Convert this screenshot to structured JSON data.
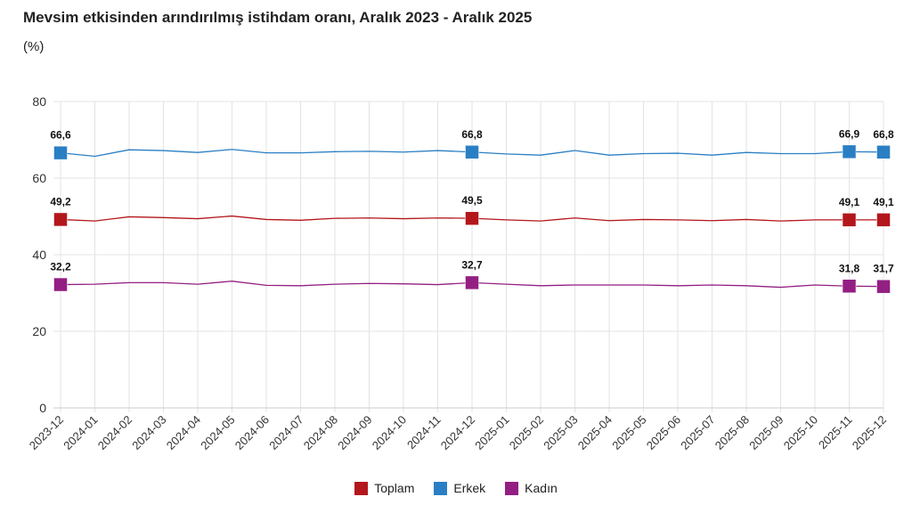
{
  "chart_data": {
    "type": "line",
    "title": "Mevsim etkisinden arındırılmış istihdam oranı, Aralık 2023 - Aralık 2025",
    "subtitle": "(%)",
    "ylim": [
      0,
      80
    ],
    "yticks": [
      0,
      20,
      40,
      60,
      80
    ],
    "grid": true,
    "legend": "bottom",
    "categories": [
      "2023-12",
      "2024-01",
      "2024-02",
      "2024-03",
      "2024-04",
      "2024-05",
      "2024-06",
      "2024-07",
      "2024-08",
      "2024-09",
      "2024-10",
      "2024-11",
      "2024-12",
      "2025-01",
      "2025-02",
      "2025-03",
      "2025-04",
      "2025-05",
      "2025-06",
      "2025-07",
      "2025-08",
      "2025-09",
      "2025-10",
      "2025-11",
      "2025-12"
    ],
    "labeled_indices": [
      0,
      12,
      23,
      24
    ],
    "series": [
      {
        "name": "Toplam",
        "color": "#b3161b",
        "values": [
          49.2,
          48.8,
          49.9,
          49.7,
          49.4,
          50.1,
          49.2,
          49.0,
          49.5,
          49.6,
          49.4,
          49.6,
          49.5,
          49.1,
          48.8,
          49.6,
          48.9,
          49.2,
          49.1,
          48.9,
          49.2,
          48.8,
          49.1,
          49.1,
          49.1
        ],
        "labels": [
          "49,2",
          "49,5",
          "49,1",
          "49,1"
        ]
      },
      {
        "name": "Erkek",
        "color": "#2a7fc4",
        "values": [
          66.6,
          65.7,
          67.4,
          67.2,
          66.7,
          67.5,
          66.6,
          66.6,
          66.9,
          67.0,
          66.8,
          67.2,
          66.8,
          66.3,
          66.0,
          67.2,
          66.0,
          66.4,
          66.5,
          66.0,
          66.7,
          66.4,
          66.4,
          66.9,
          66.8
        ],
        "labels": [
          "66,6",
          "66,8",
          "66,9",
          "66,8"
        ]
      },
      {
        "name": "Kadın",
        "color": "#931f82",
        "values": [
          32.2,
          32.3,
          32.7,
          32.7,
          32.3,
          33.1,
          32.0,
          31.9,
          32.3,
          32.5,
          32.4,
          32.2,
          32.7,
          32.3,
          31.9,
          32.1,
          32.1,
          32.1,
          31.9,
          32.1,
          31.9,
          31.5,
          32.1,
          31.8,
          31.7
        ],
        "labels": [
          "32,2",
          "32,7",
          "31,8",
          "31,7"
        ]
      }
    ]
  }
}
